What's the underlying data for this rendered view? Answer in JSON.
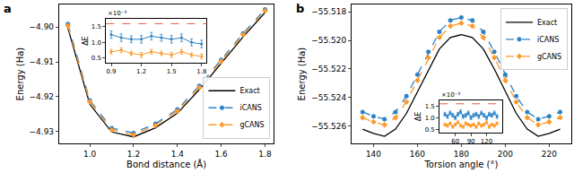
{
  "chart_data": [
    {
      "type": "line",
      "title": "a",
      "x_label": "Bond distance (Å)",
      "y_label": "Energy (Ha)",
      "x": [
        0.9,
        1.0,
        1.1,
        1.2,
        1.3,
        1.4,
        1.5,
        1.6,
        1.7,
        1.8
      ],
      "xlim": [
        0.86,
        1.84
      ],
      "xticks": [
        {
          "value": 1.0,
          "label": "1.0"
        },
        1.2,
        1.4,
        1.6,
        1.8
      ],
      "ylim": [
        -4.9335,
        -4.8935
      ],
      "yticks": [
        {
          "value": -4.93,
          "label": "−4.93"
        },
        {
          "value": -4.92,
          "label": "−4.92"
        },
        {
          "value": -4.91,
          "label": "−4.91"
        },
        {
          "value": -4.9,
          "label": "−4.90"
        }
      ],
      "grid": false,
      "legend": "lower right",
      "series": [
        {
          "name": "Exact",
          "color": "#000000",
          "line_style": "solid",
          "marker": "none",
          "values": [
            -4.9003,
            -4.9222,
            -4.9302,
            -4.9316,
            -4.929,
            -4.9248,
            -4.918,
            -4.9105,
            -4.9028,
            -4.8958
          ]
        },
        {
          "name": "iCANS",
          "color": "#2b83c6",
          "line_style": "dashed",
          "marker": "circle",
          "values": [
            -4.8991,
            -4.9211,
            -4.9291,
            -4.9305,
            -4.9278,
            -4.9237,
            -4.9169,
            -4.9094,
            -4.9018,
            -4.8949
          ]
        },
        {
          "name": "gCANS",
          "color": "#fd9a2a",
          "line_style": "dashed",
          "marker": "diamond",
          "values": [
            -4.8996,
            -4.9215,
            -4.9296,
            -4.931,
            -4.9283,
            -4.9242,
            -4.9174,
            -4.9098,
            -4.9022,
            -4.8953
          ]
        }
      ]
    },
    {
      "type": "line",
      "y_label": "ΔE",
      "annotations": [
        "×10⁻³"
      ],
      "x": [
        0.9,
        1.0,
        1.1,
        1.2,
        1.3,
        1.4,
        1.5,
        1.6,
        1.7,
        1.8
      ],
      "xlim": [
        0.85,
        1.85
      ],
      "xticks": [
        0.9,
        1.2,
        1.5,
        1.8
      ],
      "ylim": [
        0.35,
        1.75
      ],
      "yticks": [
        0.5,
        {
          "value": 1.0,
          "label": "1.0"
        },
        1.5
      ],
      "grid": false,
      "reference_line": {
        "value": 1.6,
        "color": "#e8564a",
        "line_style": "dashed"
      },
      "series": [
        {
          "name": "iCANS",
          "color": "#2b83c6",
          "line_style": "solid",
          "marker": "circle",
          "values": [
            1.25,
            1.15,
            1.1,
            1.1,
            1.2,
            1.15,
            1.1,
            1.15,
            1.0,
            0.95
          ],
          "error": [
            0.12,
            0.12,
            0.11,
            0.12,
            0.12,
            0.11,
            0.12,
            0.12,
            0.11,
            0.12
          ]
        },
        {
          "name": "gCANS",
          "color": "#fd9a2a",
          "line_style": "solid",
          "marker": "diamond",
          "values": [
            0.7,
            0.75,
            0.65,
            0.6,
            0.7,
            0.65,
            0.6,
            0.7,
            0.6,
            0.55
          ],
          "error": [
            0.08,
            0.08,
            0.07,
            0.08,
            0.08,
            0.07,
            0.08,
            0.08,
            0.07,
            0.08
          ]
        }
      ]
    },
    {
      "type": "line",
      "title": "b",
      "x_label": "Torsion angle (°)",
      "y_label": "Energy (Ha)",
      "x": [
        135,
        140,
        145,
        150,
        155,
        160,
        165,
        170,
        175,
        180,
        185,
        190,
        195,
        200,
        205,
        210,
        215,
        220,
        225
      ],
      "xlim": [
        130,
        230
      ],
      "xticks": [
        140,
        160,
        180,
        200,
        220
      ],
      "ylim": [
        -55.5272,
        -55.5175
      ],
      "yticks": [
        {
          "value": -55.526,
          "label": "−55.526"
        },
        {
          "value": -55.524,
          "label": "−55.524"
        },
        {
          "value": -55.522,
          "label": "−55.522"
        },
        {
          "value": -55.52,
          "label": "−55.520"
        },
        {
          "value": -55.518,
          "label": "−55.518"
        }
      ],
      "grid": false,
      "legend": "upper right",
      "series": [
        {
          "name": "Exact",
          "color": "#000000",
          "line_style": "solid",
          "marker": "none",
          "values": [
            -55.5262,
            -55.5265,
            -55.5267,
            -55.5262,
            -55.5251,
            -55.5236,
            -55.522,
            -55.5206,
            -55.5198,
            -55.5196,
            -55.5198,
            -55.5206,
            -55.522,
            -55.5236,
            -55.5251,
            -55.5262,
            -55.5267,
            -55.5265,
            -55.5262
          ]
        },
        {
          "name": "iCANS",
          "color": "#2b83c6",
          "line_style": "dashed",
          "marker": "circle",
          "values": [
            -55.525,
            -55.5253,
            -55.5255,
            -55.525,
            -55.5239,
            -55.5224,
            -55.5208,
            -55.5194,
            -55.5186,
            -55.5184,
            -55.5186,
            -55.5194,
            -55.5208,
            -55.5224,
            -55.5239,
            -55.525,
            -55.5255,
            -55.5253,
            -55.525
          ]
        },
        {
          "name": "gCANS",
          "color": "#fd9a2a",
          "line_style": "dashed",
          "marker": "diamond",
          "values": [
            -55.5254,
            -55.5257,
            -55.5259,
            -55.5254,
            -55.5243,
            -55.5228,
            -55.5212,
            -55.5198,
            -55.519,
            -55.5188,
            -55.519,
            -55.5198,
            -55.5212,
            -55.5228,
            -55.5243,
            -55.5254,
            -55.5259,
            -55.5257,
            -55.5254
          ]
        }
      ]
    },
    {
      "type": "line",
      "y_label": "ΔE",
      "annotations": [
        "×10⁻³"
      ],
      "x": [
        40,
        45,
        50,
        55,
        60,
        65,
        70,
        75,
        80,
        85,
        90,
        95,
        100,
        105,
        110,
        115,
        120,
        125,
        130,
        135,
        140
      ],
      "xlim": [
        30,
        150
      ],
      "xticks": [
        60,
        90,
        120
      ],
      "ylim": [
        0.35,
        1.75
      ],
      "yticks": [
        0.5,
        {
          "value": 1.0,
          "label": "1.0"
        },
        1.5
      ],
      "grid": false,
      "reference_line": {
        "value": 1.6,
        "color": "#e8564a",
        "line_style": "dashed"
      },
      "series": [
        {
          "name": "iCANS",
          "color": "#2b83c6",
          "line_style": "solid",
          "marker": "circle",
          "values": [
            1.15,
            1.05,
            1.2,
            1.1,
            1.0,
            1.15,
            1.25,
            1.05,
            1.1,
            1.2,
            1.0,
            1.1,
            1.15,
            1.05,
            1.2,
            1.1,
            1.0,
            1.15,
            1.1,
            1.2,
            1.05
          ],
          "error": [
            0.08,
            0.08,
            0.08,
            0.08,
            0.08,
            0.08,
            0.08,
            0.08,
            0.08,
            0.08,
            0.08,
            0.08,
            0.08,
            0.08,
            0.08,
            0.08,
            0.08,
            0.08,
            0.08,
            0.08,
            0.08
          ]
        },
        {
          "name": "gCANS",
          "color": "#fd9a2a",
          "line_style": "solid",
          "marker": "diamond",
          "values": [
            0.7,
            0.65,
            0.75,
            0.6,
            0.7,
            0.8,
            0.65,
            0.6,
            0.75,
            0.7,
            0.65,
            0.7,
            0.6,
            0.75,
            0.65,
            0.7,
            0.8,
            0.6,
            0.7,
            0.65,
            0.75
          ],
          "error": [
            0.06,
            0.06,
            0.06,
            0.06,
            0.06,
            0.06,
            0.06,
            0.06,
            0.06,
            0.06,
            0.06,
            0.06,
            0.06,
            0.06,
            0.06,
            0.06,
            0.06,
            0.06,
            0.06,
            0.06,
            0.06
          ]
        }
      ]
    }
  ]
}
